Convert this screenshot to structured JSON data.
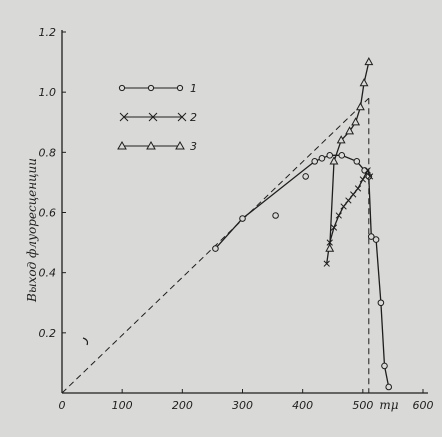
{
  "chart_data": {
    "type": "line",
    "xlabel": "mμ",
    "ylabel": "Выход флуоресценции",
    "xlim": [
      0,
      600
    ],
    "ylim": [
      0,
      1.2
    ],
    "x_ticks": [
      "0",
      "100",
      "200",
      "300",
      "400",
      "500",
      "600"
    ],
    "y_ticks": [
      "0.2",
      "0.4",
      "0.6",
      "0.8",
      "1.0",
      "1.2"
    ],
    "y_tick_values": [
      0.2,
      0.4,
      0.6,
      0.8,
      1.0,
      1.2
    ],
    "x_tick_values": [
      0,
      100,
      200,
      300,
      400,
      500,
      600
    ],
    "grid": false,
    "legend_position": "top-left",
    "series": [
      {
        "name": "1",
        "marker": "circle",
        "line": "solid",
        "points": [
          [
            255,
            0.48
          ],
          [
            300,
            0.58
          ],
          [
            420,
            0.77
          ],
          [
            432,
            0.78
          ],
          [
            445,
            0.79
          ],
          [
            465,
            0.79
          ],
          [
            490,
            0.77
          ],
          [
            503,
            0.74
          ],
          [
            510,
            0.72
          ],
          [
            514,
            0.52
          ],
          [
            522,
            0.51
          ],
          [
            530,
            0.3
          ],
          [
            536,
            0.09
          ],
          [
            543,
            0.02
          ]
        ]
      },
      {
        "name": "2",
        "marker": "x",
        "line": "solid",
        "points": [
          [
            440,
            0.43
          ],
          [
            445,
            0.5
          ],
          [
            452,
            0.55
          ],
          [
            460,
            0.59
          ],
          [
            468,
            0.62
          ],
          [
            476,
            0.64
          ],
          [
            484,
            0.66
          ],
          [
            492,
            0.68
          ],
          [
            500,
            0.71
          ],
          [
            508,
            0.74
          ],
          [
            512,
            0.72
          ]
        ]
      },
      {
        "name": "3",
        "marker": "triangle",
        "line": "solid",
        "points": [
          [
            445,
            0.48
          ],
          [
            452,
            0.77
          ],
          [
            464,
            0.84
          ],
          [
            478,
            0.87
          ],
          [
            488,
            0.9
          ],
          [
            496,
            0.95
          ],
          [
            502,
            1.03
          ],
          [
            510,
            1.1
          ]
        ]
      }
    ],
    "extra_points": [
      {
        "x": 355,
        "y": 0.59,
        "marker": "circle"
      },
      {
        "x": 405,
        "y": 0.72,
        "marker": "circle"
      }
    ],
    "reference_lines": [
      {
        "style": "dashed",
        "points": [
          [
            0,
            0
          ],
          [
            510,
            0.98
          ]
        ]
      },
      {
        "style": "dashed",
        "points": [
          [
            510,
            0.98
          ],
          [
            510,
            0
          ]
        ]
      }
    ]
  },
  "legend": [
    {
      "label": "1",
      "marker": "circle"
    },
    {
      "label": "2",
      "marker": "x"
    },
    {
      "label": "3",
      "marker": "triangle"
    }
  ],
  "colors": {
    "ink": "#1e1e1e",
    "paper": "#d9d9d7"
  }
}
